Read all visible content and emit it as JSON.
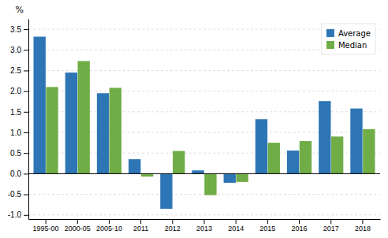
{
  "chart_data": {
    "type": "bar",
    "categories": [
      "1995-00",
      "2000-05",
      "2005-10",
      "2011",
      "2012",
      "2013",
      "2014",
      "2015",
      "2016",
      "2017",
      "2018"
    ],
    "series": [
      {
        "name": "Average",
        "color": "#2E75B6",
        "values": [
          3.32,
          2.45,
          1.95,
          0.35,
          -0.85,
          0.08,
          -0.22,
          1.32,
          0.56,
          1.76,
          1.58
        ]
      },
      {
        "name": "Median",
        "color": "#70AD47",
        "values": [
          2.1,
          2.73,
          2.08,
          -0.07,
          0.55,
          -0.52,
          -0.2,
          0.75,
          0.79,
          0.9,
          1.08
        ]
      }
    ],
    "ylabel": "%",
    "ylim": [
      -1.1,
      3.75
    ],
    "yticks": [
      {
        "value": -1.0,
        "label": "-1.0"
      },
      -0.5,
      {
        "value": 0.0,
        "label": "0.0"
      },
      0.5,
      {
        "value": 1.0,
        "label": "1.0"
      },
      1.5,
      {
        "value": 2.0,
        "label": "2.0"
      },
      2.5,
      {
        "value": 3.0,
        "label": "3.0"
      },
      3.5
    ],
    "grid": true,
    "legend": "upper right"
  }
}
